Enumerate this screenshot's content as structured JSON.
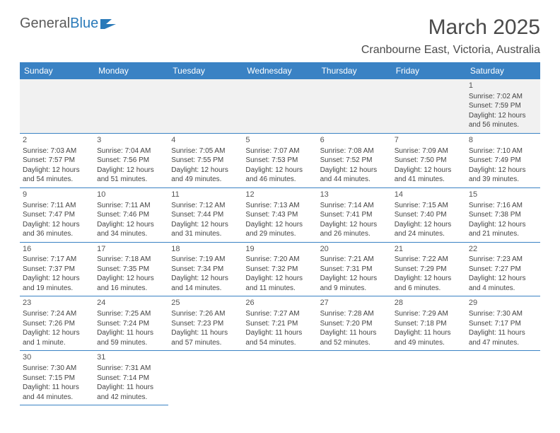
{
  "logo": {
    "text1": "General",
    "text2": "Blue"
  },
  "title": "March 2025",
  "location": "Cranbourne East, Victoria, Australia",
  "colors": {
    "header_bg": "#3a82c4",
    "header_text": "#ffffff",
    "border": "#3a82c4",
    "empty_bg": "#f1f1f1",
    "text": "#444444",
    "logo_blue": "#2a7ab9"
  },
  "weekdays": [
    "Sunday",
    "Monday",
    "Tuesday",
    "Wednesday",
    "Thursday",
    "Friday",
    "Saturday"
  ],
  "weeks": [
    [
      null,
      null,
      null,
      null,
      null,
      null,
      {
        "n": "1",
        "sr": "Sunrise: 7:02 AM",
        "ss": "Sunset: 7:59 PM",
        "d1": "Daylight: 12 hours",
        "d2": "and 56 minutes."
      }
    ],
    [
      {
        "n": "2",
        "sr": "Sunrise: 7:03 AM",
        "ss": "Sunset: 7:57 PM",
        "d1": "Daylight: 12 hours",
        "d2": "and 54 minutes."
      },
      {
        "n": "3",
        "sr": "Sunrise: 7:04 AM",
        "ss": "Sunset: 7:56 PM",
        "d1": "Daylight: 12 hours",
        "d2": "and 51 minutes."
      },
      {
        "n": "4",
        "sr": "Sunrise: 7:05 AM",
        "ss": "Sunset: 7:55 PM",
        "d1": "Daylight: 12 hours",
        "d2": "and 49 minutes."
      },
      {
        "n": "5",
        "sr": "Sunrise: 7:07 AM",
        "ss": "Sunset: 7:53 PM",
        "d1": "Daylight: 12 hours",
        "d2": "and 46 minutes."
      },
      {
        "n": "6",
        "sr": "Sunrise: 7:08 AM",
        "ss": "Sunset: 7:52 PM",
        "d1": "Daylight: 12 hours",
        "d2": "and 44 minutes."
      },
      {
        "n": "7",
        "sr": "Sunrise: 7:09 AM",
        "ss": "Sunset: 7:50 PM",
        "d1": "Daylight: 12 hours",
        "d2": "and 41 minutes."
      },
      {
        "n": "8",
        "sr": "Sunrise: 7:10 AM",
        "ss": "Sunset: 7:49 PM",
        "d1": "Daylight: 12 hours",
        "d2": "and 39 minutes."
      }
    ],
    [
      {
        "n": "9",
        "sr": "Sunrise: 7:11 AM",
        "ss": "Sunset: 7:47 PM",
        "d1": "Daylight: 12 hours",
        "d2": "and 36 minutes."
      },
      {
        "n": "10",
        "sr": "Sunrise: 7:11 AM",
        "ss": "Sunset: 7:46 PM",
        "d1": "Daylight: 12 hours",
        "d2": "and 34 minutes."
      },
      {
        "n": "11",
        "sr": "Sunrise: 7:12 AM",
        "ss": "Sunset: 7:44 PM",
        "d1": "Daylight: 12 hours",
        "d2": "and 31 minutes."
      },
      {
        "n": "12",
        "sr": "Sunrise: 7:13 AM",
        "ss": "Sunset: 7:43 PM",
        "d1": "Daylight: 12 hours",
        "d2": "and 29 minutes."
      },
      {
        "n": "13",
        "sr": "Sunrise: 7:14 AM",
        "ss": "Sunset: 7:41 PM",
        "d1": "Daylight: 12 hours",
        "d2": "and 26 minutes."
      },
      {
        "n": "14",
        "sr": "Sunrise: 7:15 AM",
        "ss": "Sunset: 7:40 PM",
        "d1": "Daylight: 12 hours",
        "d2": "and 24 minutes."
      },
      {
        "n": "15",
        "sr": "Sunrise: 7:16 AM",
        "ss": "Sunset: 7:38 PM",
        "d1": "Daylight: 12 hours",
        "d2": "and 21 minutes."
      }
    ],
    [
      {
        "n": "16",
        "sr": "Sunrise: 7:17 AM",
        "ss": "Sunset: 7:37 PM",
        "d1": "Daylight: 12 hours",
        "d2": "and 19 minutes."
      },
      {
        "n": "17",
        "sr": "Sunrise: 7:18 AM",
        "ss": "Sunset: 7:35 PM",
        "d1": "Daylight: 12 hours",
        "d2": "and 16 minutes."
      },
      {
        "n": "18",
        "sr": "Sunrise: 7:19 AM",
        "ss": "Sunset: 7:34 PM",
        "d1": "Daylight: 12 hours",
        "d2": "and 14 minutes."
      },
      {
        "n": "19",
        "sr": "Sunrise: 7:20 AM",
        "ss": "Sunset: 7:32 PM",
        "d1": "Daylight: 12 hours",
        "d2": "and 11 minutes."
      },
      {
        "n": "20",
        "sr": "Sunrise: 7:21 AM",
        "ss": "Sunset: 7:31 PM",
        "d1": "Daylight: 12 hours",
        "d2": "and 9 minutes."
      },
      {
        "n": "21",
        "sr": "Sunrise: 7:22 AM",
        "ss": "Sunset: 7:29 PM",
        "d1": "Daylight: 12 hours",
        "d2": "and 6 minutes."
      },
      {
        "n": "22",
        "sr": "Sunrise: 7:23 AM",
        "ss": "Sunset: 7:27 PM",
        "d1": "Daylight: 12 hours",
        "d2": "and 4 minutes."
      }
    ],
    [
      {
        "n": "23",
        "sr": "Sunrise: 7:24 AM",
        "ss": "Sunset: 7:26 PM",
        "d1": "Daylight: 12 hours",
        "d2": "and 1 minute."
      },
      {
        "n": "24",
        "sr": "Sunrise: 7:25 AM",
        "ss": "Sunset: 7:24 PM",
        "d1": "Daylight: 11 hours",
        "d2": "and 59 minutes."
      },
      {
        "n": "25",
        "sr": "Sunrise: 7:26 AM",
        "ss": "Sunset: 7:23 PM",
        "d1": "Daylight: 11 hours",
        "d2": "and 57 minutes."
      },
      {
        "n": "26",
        "sr": "Sunrise: 7:27 AM",
        "ss": "Sunset: 7:21 PM",
        "d1": "Daylight: 11 hours",
        "d2": "and 54 minutes."
      },
      {
        "n": "27",
        "sr": "Sunrise: 7:28 AM",
        "ss": "Sunset: 7:20 PM",
        "d1": "Daylight: 11 hours",
        "d2": "and 52 minutes."
      },
      {
        "n": "28",
        "sr": "Sunrise: 7:29 AM",
        "ss": "Sunset: 7:18 PM",
        "d1": "Daylight: 11 hours",
        "d2": "and 49 minutes."
      },
      {
        "n": "29",
        "sr": "Sunrise: 7:30 AM",
        "ss": "Sunset: 7:17 PM",
        "d1": "Daylight: 11 hours",
        "d2": "and 47 minutes."
      }
    ],
    [
      {
        "n": "30",
        "sr": "Sunrise: 7:30 AM",
        "ss": "Sunset: 7:15 PM",
        "d1": "Daylight: 11 hours",
        "d2": "and 44 minutes."
      },
      {
        "n": "31",
        "sr": "Sunrise: 7:31 AM",
        "ss": "Sunset: 7:14 PM",
        "d1": "Daylight: 11 hours",
        "d2": "and 42 minutes."
      },
      null,
      null,
      null,
      null,
      null
    ]
  ]
}
